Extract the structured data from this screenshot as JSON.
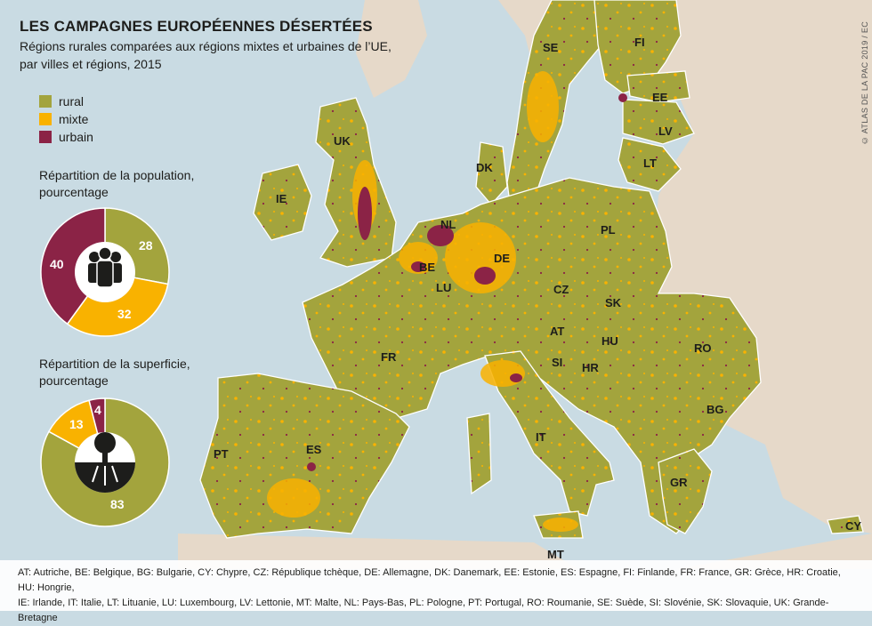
{
  "title": "LES CAMPAGNES EUROPÉENNES DÉSERTÉES",
  "subtitle": "Régions rurales comparées aux régions mixtes et urbaines de l’UE, par villes et régions, 2015",
  "credit": "© ATLAS DE LA PAC 2019 / EC",
  "colors": {
    "rural": "#a3a43d",
    "mixte": "#f9b200",
    "urbain": "#8b2346",
    "sea": "#c9dbe3",
    "non_eu_land": "#e6d9c9",
    "border": "#ffffff"
  },
  "legend": [
    {
      "label": "rural",
      "color": "#a3a43d"
    },
    {
      "label": "mixte",
      "color": "#f9b200"
    },
    {
      "label": "urbain",
      "color": "#8b2346"
    }
  ],
  "population": {
    "title": "Répartition de la population, pourcentage",
    "icon": "people-icon",
    "rural": 28,
    "mixte": 32,
    "urbain": 40
  },
  "superficie": {
    "title": "Répartition de la superficie, pourcentage",
    "icon": "tree-field-icon",
    "rural": 83,
    "mixte": 13,
    "urbain": 4
  },
  "country_labels": [
    "SE",
    "FI",
    "EE",
    "LV",
    "LT",
    "UK",
    "IE",
    "DK",
    "NL",
    "BE",
    "LU",
    "DE",
    "PL",
    "CZ",
    "SK",
    "FR",
    "AT",
    "HU",
    "RO",
    "SI",
    "HR",
    "BG",
    "IT",
    "ES",
    "PT",
    "GR",
    "MT",
    "CY"
  ],
  "footer": {
    "line1": "AT: Autriche, BE: Belgique, BG: Bulgarie, CY: Chypre, CZ: République tchèque, DE: Allemagne, DK: Danemark, EE: Estonie, ES: Espagne, FI: Finlande, FR: France, GR: Grèce, HR: Croatie, HU: Hongrie,",
    "line2": "IE: Irlande, IT: Italie, LT: Lituanie, LU: Luxembourg, LV: Lettonie, MT: Malte, NL: Pays-Bas, PL: Pologne, PT: Portugal, RO: Roumanie, SE: Suède, SI: Slovénie, SK: Slovaquie, UK: Grande-Bretagne"
  }
}
